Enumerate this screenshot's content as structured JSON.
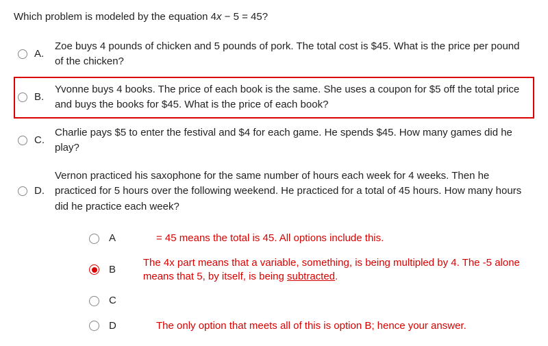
{
  "question": {
    "stem_1": "Which problem is modeled by the equation 4",
    "stem_var": "x",
    "stem_2": " − 5 = 45?"
  },
  "options": {
    "items": [
      {
        "letter": "A.",
        "text": "Zoe buys 4 pounds of chicken and 5 pounds of pork. The total cost is $45. What is the price per pound of the chicken?",
        "highlight": false
      },
      {
        "letter": "B.",
        "text": "Yvonne buys 4 books. The price of each book is the same. She uses a coupon for $5 off the total price and buys the books for $45. What is the price of each book?",
        "highlight": true
      },
      {
        "letter": "C.",
        "text": "Charlie pays $5 to enter the festival and $4 for each game. He spends $45. How many games did he play?",
        "highlight": false
      },
      {
        "letter": "D.",
        "text": "Vernon practiced his saxophone for the same number of hours each week for 4 weeks. Then he practiced for 5 hours over the following weekend. He practiced for a total of 45 hours. How many hours did he practice each week?",
        "highlight": false
      }
    ]
  },
  "answer_section": {
    "choices": [
      {
        "letter": "A",
        "selected": false,
        "explain_html": "= 45 means the total is 45. All options include this."
      },
      {
        "letter": "B",
        "selected": true,
        "explain_html": "The 4x part means that a variable, something, is being multipled by 4. The -5 alone means that 5, by itself, is being <span class=\"underline\">subtracted</span>."
      },
      {
        "letter": "C",
        "selected": false,
        "explain_html": ""
      },
      {
        "letter": "D",
        "selected": false,
        "explain_html": "The only option that meets all of this is option B; hence your answer."
      }
    ]
  },
  "colors": {
    "highlight": "#d90000",
    "text": "#333333",
    "radio_border": "#888888",
    "background": "#ffffff"
  }
}
